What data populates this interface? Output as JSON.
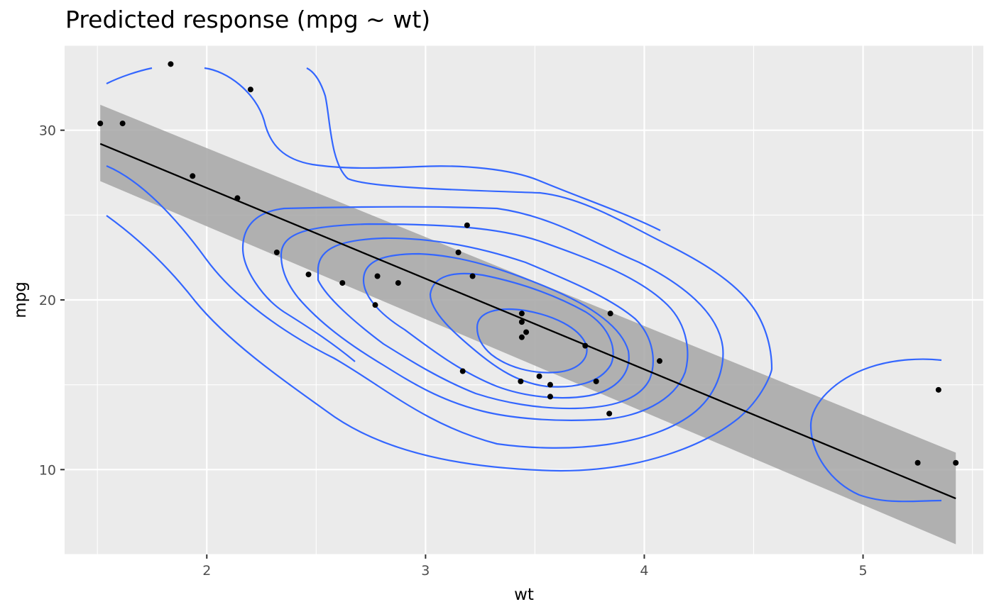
{
  "chart_data": {
    "type": "scatter",
    "title": "Predicted response (mpg ~ wt)",
    "xlabel": "wt",
    "ylabel": "mpg",
    "xlim": [
      1.35,
      5.55
    ],
    "ylim": [
      5,
      35
    ],
    "x_ticks": [
      2,
      3,
      4,
      5
    ],
    "y_ticks": [
      10,
      20,
      30
    ],
    "grid": true,
    "colors": {
      "panel": "#ebebeb",
      "grid": "#ffffff",
      "points": "#000000",
      "fit": "#000000",
      "band": "#a6a6a6",
      "contour": "#3366ff"
    },
    "series": [
      {
        "type": "points",
        "x": [
          2.62,
          2.875,
          2.32,
          3.215,
          3.44,
          3.46,
          3.57,
          3.19,
          3.15,
          3.44,
          3.44,
          4.07,
          3.73,
          3.78,
          5.25,
          5.424,
          5.345,
          2.2,
          1.615,
          1.835,
          2.465,
          3.52,
          3.435,
          3.84,
          3.845,
          1.935,
          2.14,
          1.513,
          3.17,
          2.77,
          3.57,
          2.78
        ],
        "y": [
          21.0,
          21.0,
          22.8,
          21.4,
          18.7,
          18.1,
          14.3,
          24.4,
          22.8,
          19.2,
          17.8,
          16.4,
          17.3,
          15.2,
          10.4,
          10.4,
          14.7,
          32.4,
          30.4,
          33.9,
          21.5,
          15.5,
          15.2,
          13.3,
          19.2,
          27.3,
          26.0,
          30.4,
          15.8,
          19.7,
          15.0,
          21.4
        ]
      },
      {
        "type": "line",
        "x": [
          1.513,
          5.424
        ],
        "y": [
          29.2,
          8.3
        ]
      },
      {
        "type": "ribbon",
        "x": [
          1.513,
          5.424
        ],
        "ymin": [
          27.0,
          5.6
        ],
        "ymax": [
          31.5,
          11.0
        ]
      }
    ]
  }
}
